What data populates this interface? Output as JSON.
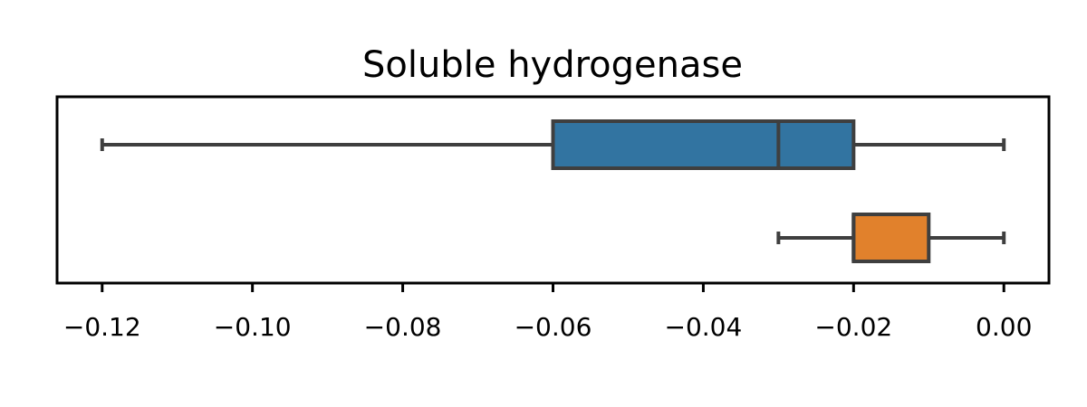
{
  "chart_data": {
    "type": "boxplot",
    "orientation": "horizontal",
    "title": "Soluble hydrogenase",
    "xlabel": "",
    "ylabel": "",
    "xlim": [
      -0.126,
      0.006
    ],
    "xticks": [
      -0.12,
      -0.1,
      -0.08,
      -0.06,
      -0.04,
      -0.02,
      0.0
    ],
    "xtick_labels": [
      "−0.12",
      "−0.10",
      "−0.08",
      "−0.06",
      "−0.04",
      "−0.02",
      "0.00"
    ],
    "grid": false,
    "series": [
      {
        "color": "#3274a1",
        "min": -0.12,
        "q1": -0.06,
        "median": -0.03,
        "q3": -0.02,
        "max": 0.0
      },
      {
        "color": "#e1812c",
        "min": -0.03,
        "q1": -0.02,
        "median": -0.02,
        "q3": -0.01,
        "max": 0.0
      }
    ]
  }
}
